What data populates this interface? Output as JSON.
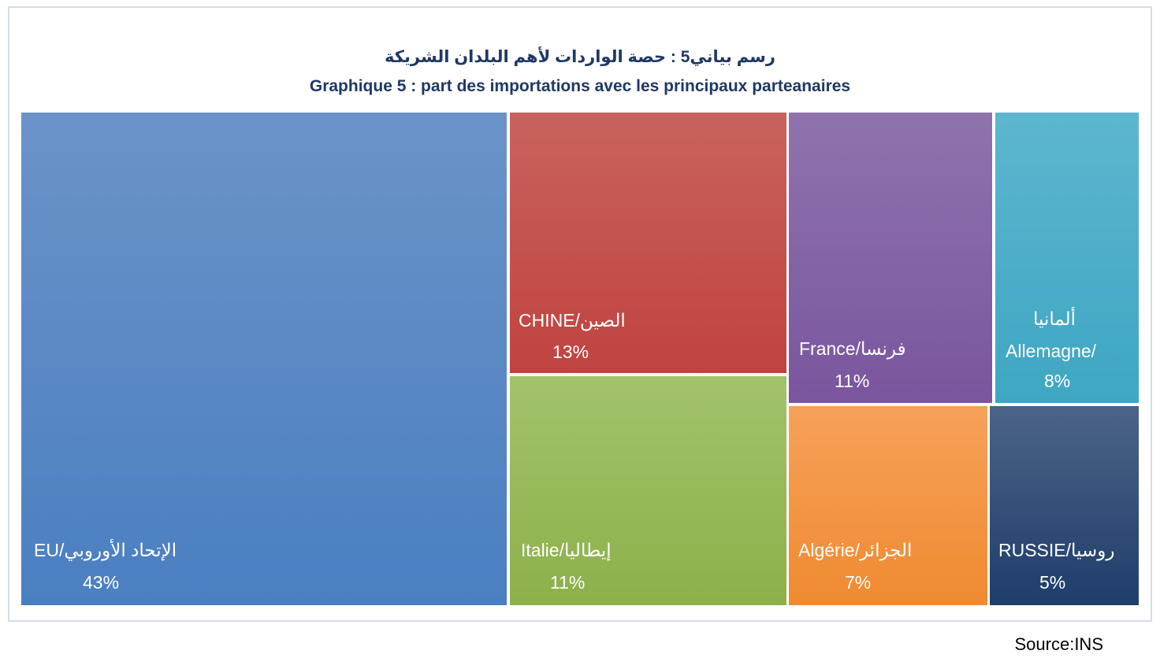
{
  "title_ar": "رسم بياني5 :  حصة الواردات لأهم البلدان الشريكة",
  "title_fr": "Graphique 5 : part des importations avec les principaux parteanaires",
  "source": "Source:INS",
  "chart_data": {
    "type": "treemap",
    "title": "Graphique 5 : part des importations avec les principaux parteanaires",
    "unit": "%",
    "items": [
      {
        "id": "eu",
        "name": "EU/الإتحاد الأوروبي",
        "value": 43,
        "value_label": "43%",
        "color": "#4a7fc1",
        "color_top": "#6b93c8"
      },
      {
        "id": "chine",
        "name": "CHINE/الصين",
        "value": 13,
        "value_label": "13%",
        "color": "#c0433f",
        "color_top": "#c9625e"
      },
      {
        "id": "italie",
        "name": "Italie/إيطاليا",
        "value": 11,
        "value_label": "11%",
        "color": "#8db04a",
        "color_top": "#a3c26b"
      },
      {
        "id": "france",
        "name": "France/فرنسا",
        "value": 11,
        "value_label": "11%",
        "color": "#7a559e",
        "color_top": "#8f73ad"
      },
      {
        "id": "algerie",
        "name": "Algérie/الجزائر",
        "value": 7,
        "value_label": "7%",
        "color": "#f08a30",
        "color_top": "#f6a15a"
      },
      {
        "id": "allemagne",
        "name": "Allemagne/ ألمانيا",
        "name_line1": "ألمانيا",
        "name_line2": "Allemagne/",
        "value": 8,
        "value_label": "8%",
        "color": "#3ea6c3",
        "color_top": "#5db6cf"
      },
      {
        "id": "russie",
        "name": "RUSSIE/روسيا",
        "value": 5,
        "value_label": "5%",
        "color": "#1f3d6b",
        "color_top": "#4b6386"
      }
    ]
  }
}
